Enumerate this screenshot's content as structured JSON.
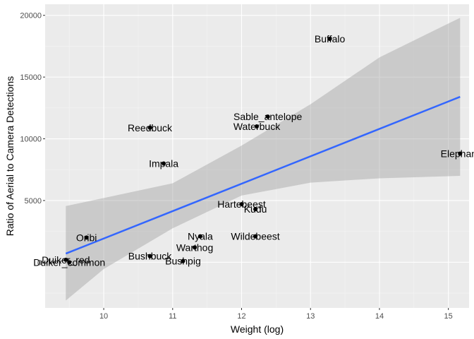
{
  "chart_data": {
    "type": "scatter",
    "title": "",
    "xlabel": "Weight (log)",
    "ylabel": "Ratio of Aerial to Camera Detections",
    "xlim": [
      9.15,
      15.3
    ],
    "ylim": [
      -3700,
      20900
    ],
    "x_ticks": [
      10,
      11,
      12,
      13,
      14,
      15
    ],
    "y_ticks": [
      0,
      5000,
      10000,
      15000,
      20000
    ],
    "x_tick_labels": [
      "10",
      "11",
      "12",
      "13",
      "14",
      "15"
    ],
    "y_tick_labels": [
      "0",
      "5000",
      "10000",
      "15000",
      "20000"
    ],
    "grid": true,
    "legend": "none",
    "points": [
      {
        "label": "Buffalo",
        "x": 13.28,
        "y": 18100
      },
      {
        "label": "Sable_antelope",
        "x": 12.38,
        "y": 11800
      },
      {
        "label": "Waterbuck",
        "x": 12.22,
        "y": 11000
      },
      {
        "label": "Reedbuck",
        "x": 10.67,
        "y": 10900
      },
      {
        "label": "Impala",
        "x": 10.87,
        "y": 8000
      },
      {
        "label": "Elephant",
        "x": 15.17,
        "y": 8800
      },
      {
        "label": "Hartebeest",
        "x": 12.0,
        "y": 4700
      },
      {
        "label": "Kudu",
        "x": 12.2,
        "y": 4300
      },
      {
        "label": "Oribi",
        "x": 9.75,
        "y": 2000
      },
      {
        "label": "Nyala",
        "x": 11.4,
        "y": 2100
      },
      {
        "label": "Wildebeest",
        "x": 12.2,
        "y": 2100
      },
      {
        "label": "Warthog",
        "x": 11.32,
        "y": 1200
      },
      {
        "label": "Bushbuck",
        "x": 10.67,
        "y": 500
      },
      {
        "label": "Bushpig",
        "x": 11.15,
        "y": 100
      },
      {
        "label": "Duiker_red",
        "x": 9.45,
        "y": 200
      },
      {
        "label": "Duiker_common",
        "x": 9.5,
        "y": 0
      }
    ],
    "fit": {
      "type": "linear",
      "x": [
        9.45,
        10.0,
        11.0,
        12.0,
        13.0,
        14.0,
        15.17
      ],
      "y": [
        700,
        2300,
        4850,
        7400,
        9950,
        10500,
        13400
      ],
      "ci_lower": [
        -3100,
        -550,
        2750,
        5400,
        6450,
        6800,
        7000
      ],
      "ci_upper": [
        4550,
        5200,
        6400,
        9450,
        12800,
        16600,
        19800
      ]
    },
    "colors": {
      "panel": "#ebebeb",
      "grid_major": "#ffffff",
      "grid_minor": "#f5f5f5",
      "fit_line": "#3366ff",
      "ci_ribbon": "#999999",
      "points": "#000000"
    }
  }
}
